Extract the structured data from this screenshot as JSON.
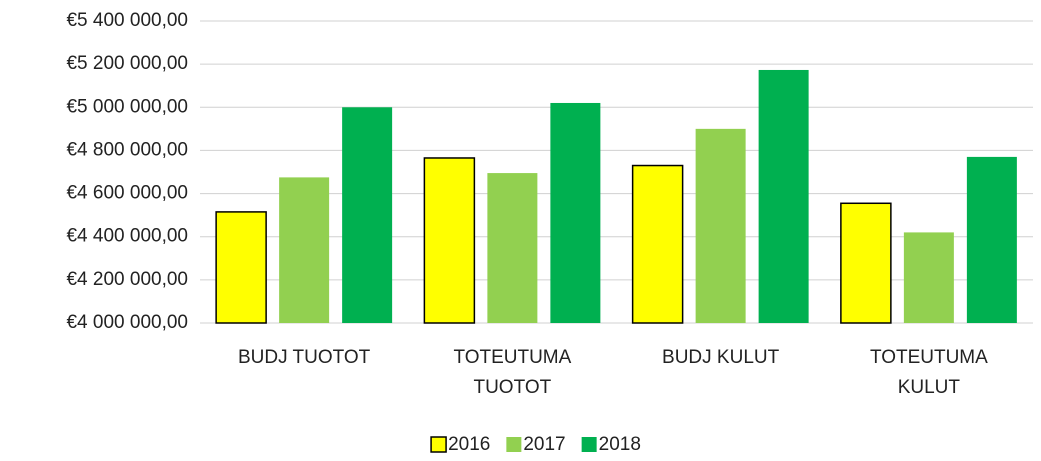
{
  "chart_data": {
    "type": "bar",
    "categories": [
      "BUDJ TUOTOT",
      "TOTEUTUMA TUOTOT",
      "BUDJ KULUT",
      "TOTEUTUMA KULUT"
    ],
    "series": [
      {
        "name": "2016",
        "color": "#ffff00",
        "edgecolor": "#000000",
        "values": [
          4515000,
          4765000,
          4730000,
          4555000
        ]
      },
      {
        "name": "2017",
        "color": "#92d050",
        "values": [
          4675000,
          4695000,
          4900000,
          4420000
        ]
      },
      {
        "name": "2018",
        "color": "#00b050",
        "values": [
          5000000,
          5020000,
          5173000,
          4770000
        ]
      }
    ],
    "ylim": [
      4000000,
      5400000
    ],
    "yticks": [
      {
        "value": 4000000,
        "label": "€4 000 000,00"
      },
      {
        "value": 4200000,
        "label": "€4 200 000,00"
      },
      {
        "value": 4400000,
        "label": "€4 400 000,00"
      },
      {
        "value": 4600000,
        "label": "€4 600 000,00"
      },
      {
        "value": 4800000,
        "label": "€4 800 000,00"
      },
      {
        "value": 5000000,
        "label": "€5 000 000,00"
      },
      {
        "value": 5200000,
        "label": "€5 200 000,00"
      },
      {
        "value": 5400000,
        "label": "€5 400 000,00"
      }
    ],
    "grid": true,
    "legend": "bottom"
  }
}
